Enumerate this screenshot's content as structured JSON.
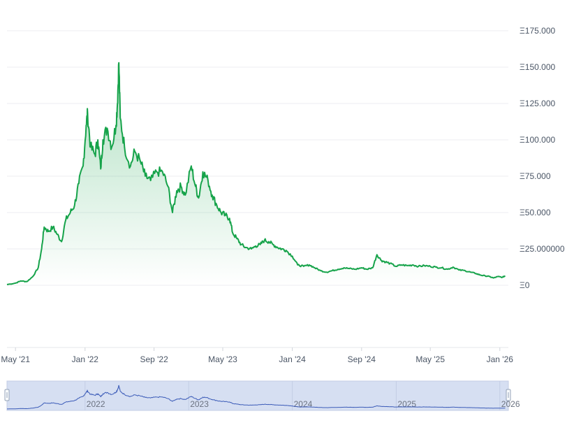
{
  "chart_data": {
    "type": "area",
    "title": "",
    "xlabel": "",
    "ylabel": "",
    "currency_symbol": "Ξ",
    "ylim": [
      0,
      180
    ],
    "xlim": [
      "2021-04-01",
      "2026-01-31"
    ],
    "grid": true,
    "legend": "none",
    "line_color": "#16a34a",
    "fill_color": "#16a34a",
    "y_ticks": [
      {
        "value": 0,
        "label": "Ξ0"
      },
      {
        "value": 25,
        "label": "Ξ25.000000"
      },
      {
        "value": 50,
        "label": "Ξ50.000"
      },
      {
        "value": 75,
        "label": "Ξ75.000"
      },
      {
        "value": 100,
        "label": "Ξ100.000"
      },
      {
        "value": 125,
        "label": "Ξ125.000"
      },
      {
        "value": 150,
        "label": "Ξ150.000"
      },
      {
        "value": 175,
        "label": "Ξ175.000"
      }
    ],
    "x_ticks": [
      {
        "date": "2021-05-01",
        "label": "May '21"
      },
      {
        "date": "2022-01-01",
        "label": "Jan '22"
      },
      {
        "date": "2022-09-01",
        "label": "Sep '22"
      },
      {
        "date": "2023-05-01",
        "label": "May '23"
      },
      {
        "date": "2024-01-01",
        "label": "Jan '24"
      },
      {
        "date": "2024-09-01",
        "label": "Sep '24"
      },
      {
        "date": "2025-05-01",
        "label": "May '25"
      },
      {
        "date": "2026-01-01",
        "label": "Jan '26"
      }
    ],
    "navigator": {
      "labels": [
        {
          "date": "2022-01-01",
          "label": "2022"
        },
        {
          "date": "2023-01-01",
          "label": "2023"
        },
        {
          "date": "2024-01-01",
          "label": "2024"
        },
        {
          "date": "2025-01-01",
          "label": "2025"
        },
        {
          "date": "2026-01-01",
          "label": "2026"
        }
      ]
    },
    "series": [
      {
        "points": [
          [
            "2021-04-01",
            0.5
          ],
          [
            "2021-05-01",
            1.5
          ],
          [
            "2021-05-20",
            3.0
          ],
          [
            "2021-06-10",
            2.5
          ],
          [
            "2021-07-01",
            6.0
          ],
          [
            "2021-07-20",
            12.0
          ],
          [
            "2021-08-01",
            25.0
          ],
          [
            "2021-08-10",
            40.0
          ],
          [
            "2021-08-25",
            37.0
          ],
          [
            "2021-09-10",
            40.0
          ],
          [
            "2021-09-25",
            35.0
          ],
          [
            "2021-10-10",
            30.0
          ],
          [
            "2021-10-25",
            45.0
          ],
          [
            "2021-11-10",
            50.0
          ],
          [
            "2021-11-25",
            55.0
          ],
          [
            "2021-12-10",
            70.0
          ],
          [
            "2021-12-25",
            82.0
          ],
          [
            "2022-01-05",
            110.0
          ],
          [
            "2022-01-10",
            118.0
          ],
          [
            "2022-01-20",
            95.0
          ],
          [
            "2022-02-05",
            90.0
          ],
          [
            "2022-02-15",
            100.0
          ],
          [
            "2022-02-25",
            80.0
          ],
          [
            "2022-03-05",
            100.0
          ],
          [
            "2022-03-20",
            108.0
          ],
          [
            "2022-04-05",
            95.0
          ],
          [
            "2022-04-20",
            110.0
          ],
          [
            "2022-04-25",
            125.0
          ],
          [
            "2022-04-30",
            153.0
          ],
          [
            "2022-05-05",
            115.0
          ],
          [
            "2022-05-20",
            95.0
          ],
          [
            "2022-06-10",
            82.0
          ],
          [
            "2022-06-25",
            92.0
          ],
          [
            "2022-07-15",
            85.0
          ],
          [
            "2022-08-01",
            75.0
          ],
          [
            "2022-08-20",
            72.0
          ],
          [
            "2022-09-10",
            78.0
          ],
          [
            "2022-10-01",
            78.0
          ],
          [
            "2022-10-20",
            68.0
          ],
          [
            "2022-11-05",
            50.0
          ],
          [
            "2022-11-20",
            65.0
          ],
          [
            "2022-12-05",
            68.0
          ],
          [
            "2022-12-20",
            62.0
          ],
          [
            "2023-01-10",
            82.0
          ],
          [
            "2023-01-25",
            68.0
          ],
          [
            "2023-02-05",
            60.0
          ],
          [
            "2023-02-20",
            78.0
          ],
          [
            "2023-03-10",
            72.0
          ],
          [
            "2023-03-25",
            62.0
          ],
          [
            "2023-04-10",
            55.0
          ],
          [
            "2023-04-25",
            50.0
          ],
          [
            "2023-05-10",
            48.0
          ],
          [
            "2023-05-25",
            46.0
          ],
          [
            "2023-06-05",
            36.0
          ],
          [
            "2023-06-20",
            32.0
          ],
          [
            "2023-07-05",
            28.0
          ],
          [
            "2023-07-20",
            26.0
          ],
          [
            "2023-08-10",
            25.0
          ],
          [
            "2023-08-25",
            27.0
          ],
          [
            "2023-09-10",
            28.0
          ],
          [
            "2023-09-25",
            31.0
          ],
          [
            "2023-10-10",
            30.0
          ],
          [
            "2023-10-25",
            28.0
          ],
          [
            "2023-11-10",
            26.0
          ],
          [
            "2023-11-25",
            25.0
          ],
          [
            "2023-12-10",
            24.0
          ],
          [
            "2024-01-01",
            20.0
          ],
          [
            "2024-01-20",
            14.0
          ],
          [
            "2024-02-10",
            13.0
          ],
          [
            "2024-03-01",
            14.0
          ],
          [
            "2024-03-20",
            12.0
          ],
          [
            "2024-04-10",
            10.0
          ],
          [
            "2024-05-01",
            9.0
          ],
          [
            "2024-05-20",
            10.0
          ],
          [
            "2024-06-10",
            11.0
          ],
          [
            "2024-07-01",
            12.0
          ],
          [
            "2024-07-20",
            11.5
          ],
          [
            "2024-08-10",
            11.0
          ],
          [
            "2024-09-01",
            12.0
          ],
          [
            "2024-09-20",
            11.0
          ],
          [
            "2024-10-10",
            12.0
          ],
          [
            "2024-10-25",
            21.0
          ],
          [
            "2024-11-10",
            17.0
          ],
          [
            "2024-11-25",
            16.0
          ],
          [
            "2024-12-10",
            15.0
          ],
          [
            "2025-01-01",
            13.0
          ],
          [
            "2025-01-20",
            14.0
          ],
          [
            "2025-02-10",
            13.5
          ],
          [
            "2025-03-01",
            14.0
          ],
          [
            "2025-03-20",
            13.0
          ],
          [
            "2025-04-10",
            13.5
          ],
          [
            "2025-05-01",
            13.0
          ],
          [
            "2025-05-20",
            12.5
          ],
          [
            "2025-06-10",
            12.0
          ],
          [
            "2025-07-01",
            11.0
          ],
          [
            "2025-07-20",
            12.5
          ],
          [
            "2025-08-10",
            10.5
          ],
          [
            "2025-09-01",
            10.0
          ],
          [
            "2025-09-20",
            9.0
          ],
          [
            "2025-10-10",
            8.0
          ],
          [
            "2025-10-25",
            7.0
          ],
          [
            "2025-11-10",
            6.5
          ],
          [
            "2025-11-25",
            6.0
          ],
          [
            "2025-12-10",
            5.0
          ],
          [
            "2025-12-25",
            6.0
          ],
          [
            "2026-01-10",
            5.5
          ],
          [
            "2026-01-20",
            6.5
          ]
        ]
      }
    ]
  }
}
